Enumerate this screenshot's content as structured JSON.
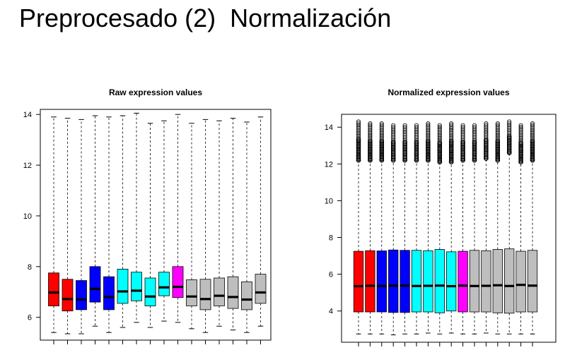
{
  "slide": {
    "title": "Preprocesado (2)  Normalización"
  },
  "chart_data": [
    {
      "type": "box",
      "title": "Raw expression values",
      "xlabel": "",
      "ylabel": "",
      "ylim": [
        5.1,
        14.2
      ],
      "yticks": [
        6,
        8,
        10,
        12,
        14
      ],
      "grid": false,
      "legend": "none",
      "boxes": [
        {
          "color": "#ff0000",
          "whisker_low": 5.4,
          "q1": 6.45,
          "median": 6.98,
          "q3": 7.75,
          "whisker_high": 13.9
        },
        {
          "color": "#ff0000",
          "whisker_low": 5.35,
          "q1": 6.25,
          "median": 6.72,
          "q3": 7.5,
          "whisker_high": 13.85
        },
        {
          "color": "#0000ff",
          "whisker_low": 5.35,
          "q1": 6.3,
          "median": 6.7,
          "q3": 7.45,
          "whisker_high": 13.8
        },
        {
          "color": "#0000ff",
          "whisker_low": 5.65,
          "q1": 6.6,
          "median": 7.12,
          "q3": 8.0,
          "whisker_high": 13.95
        },
        {
          "color": "#0000ff",
          "whisker_low": 5.4,
          "q1": 6.3,
          "median": 6.8,
          "q3": 7.6,
          "whisker_high": 13.9
        },
        {
          "color": "#00ffff",
          "whisker_low": 5.6,
          "q1": 6.55,
          "median": 7.02,
          "q3": 7.9,
          "whisker_high": 13.95
        },
        {
          "color": "#00ffff",
          "whisker_low": 5.8,
          "q1": 6.65,
          "median": 7.05,
          "q3": 7.78,
          "whisker_high": 14.05
        },
        {
          "color": "#00ffff",
          "whisker_low": 5.6,
          "q1": 6.45,
          "median": 6.82,
          "q3": 7.55,
          "whisker_high": 13.65
        },
        {
          "color": "#00ffff",
          "whisker_low": 5.85,
          "q1": 6.85,
          "median": 7.18,
          "q3": 7.78,
          "whisker_high": 13.75
        },
        {
          "color": "#ff00ff",
          "whisker_low": 5.8,
          "q1": 6.78,
          "median": 7.2,
          "q3": 8.0,
          "whisker_high": 14.0
        },
        {
          "color": "#bebebe",
          "whisker_low": 5.55,
          "q1": 6.45,
          "median": 6.82,
          "q3": 7.48,
          "whisker_high": 13.65
        },
        {
          "color": "#bebebe",
          "whisker_low": 5.4,
          "q1": 6.3,
          "median": 6.72,
          "q3": 7.5,
          "whisker_high": 13.8
        },
        {
          "color": "#bebebe",
          "whisker_low": 5.65,
          "q1": 6.45,
          "median": 6.85,
          "q3": 7.55,
          "whisker_high": 13.75
        },
        {
          "color": "#bebebe",
          "whisker_low": 5.5,
          "q1": 6.35,
          "median": 6.8,
          "q3": 7.6,
          "whisker_high": 13.85
        },
        {
          "color": "#bebebe",
          "whisker_low": 5.4,
          "q1": 6.3,
          "median": 6.7,
          "q3": 7.4,
          "whisker_high": 13.7
        },
        {
          "color": "#bebebe",
          "whisker_low": 5.65,
          "q1": 6.55,
          "median": 6.98,
          "q3": 7.7,
          "whisker_high": 13.9
        }
      ]
    },
    {
      "type": "box",
      "title": "Normalized expression values",
      "xlabel": "",
      "ylabel": "",
      "ylim": [
        2.3,
        14.7
      ],
      "yticks": [
        4,
        6,
        8,
        10,
        12,
        14
      ],
      "grid": false,
      "legend": "none",
      "boxes": [
        {
          "color": "#ff0000",
          "whisker_low": 2.75,
          "q1": 3.95,
          "median": 5.35,
          "q3": 7.25,
          "whisker_high": 12.2,
          "outliers_top": 14.3
        },
        {
          "color": "#ff0000",
          "whisker_low": 2.75,
          "q1": 3.95,
          "median": 5.37,
          "q3": 7.28,
          "whisker_high": 12.2,
          "outliers_top": 14.2
        },
        {
          "color": "#0000ff",
          "whisker_low": 2.75,
          "q1": 3.95,
          "median": 5.36,
          "q3": 7.27,
          "whisker_high": 12.2,
          "outliers_top": 14.2
        },
        {
          "color": "#0000ff",
          "whisker_low": 2.7,
          "q1": 3.92,
          "median": 5.38,
          "q3": 7.32,
          "whisker_high": 12.2,
          "outliers_top": 14.1
        },
        {
          "color": "#0000ff",
          "whisker_low": 2.75,
          "q1": 3.92,
          "median": 5.38,
          "q3": 7.3,
          "whisker_high": 12.2,
          "outliers_top": 14.1
        },
        {
          "color": "#00ffff",
          "whisker_low": 2.75,
          "q1": 3.95,
          "median": 5.36,
          "q3": 7.3,
          "whisker_high": 12.2,
          "outliers_top": 14.1
        },
        {
          "color": "#00ffff",
          "whisker_low": 2.8,
          "q1": 3.95,
          "median": 5.37,
          "q3": 7.28,
          "whisker_high": 12.2,
          "outliers_top": 14.2
        },
        {
          "color": "#00ffff",
          "whisker_low": 2.75,
          "q1": 3.9,
          "median": 5.38,
          "q3": 7.35,
          "whisker_high": 12.1,
          "outliers_top": 14.1
        },
        {
          "color": "#00ffff",
          "whisker_low": 2.8,
          "q1": 4.0,
          "median": 5.35,
          "q3": 7.22,
          "whisker_high": 12.1,
          "outliers_top": 14.2
        },
        {
          "color": "#ff00ff",
          "whisker_low": 2.75,
          "q1": 3.95,
          "median": 5.38,
          "q3": 7.25,
          "whisker_high": 12.2,
          "outliers_top": 14.1
        },
        {
          "color": "#bebebe",
          "whisker_low": 2.75,
          "q1": 3.95,
          "median": 5.36,
          "q3": 7.3,
          "whisker_high": 12.2,
          "outliers_top": 14.1
        },
        {
          "color": "#bebebe",
          "whisker_low": 2.8,
          "q1": 3.95,
          "median": 5.37,
          "q3": 7.28,
          "whisker_high": 12.3,
          "outliers_top": 14.2
        },
        {
          "color": "#bebebe",
          "whisker_low": 2.75,
          "q1": 3.9,
          "median": 5.4,
          "q3": 7.35,
          "whisker_high": 12.2,
          "outliers_top": 14.2
        },
        {
          "color": "#bebebe",
          "whisker_low": 2.75,
          "q1": 3.88,
          "median": 5.36,
          "q3": 7.38,
          "whisker_high": 12.6,
          "outliers_top": 14.3
        },
        {
          "color": "#bebebe",
          "whisker_low": 2.75,
          "q1": 3.95,
          "median": 5.42,
          "q3": 7.25,
          "whisker_high": 12.1,
          "outliers_top": 14.1
        },
        {
          "color": "#bebebe",
          "whisker_low": 2.75,
          "q1": 3.95,
          "median": 5.38,
          "q3": 7.3,
          "whisker_high": 12.2,
          "outliers_top": 14.2
        }
      ]
    }
  ]
}
